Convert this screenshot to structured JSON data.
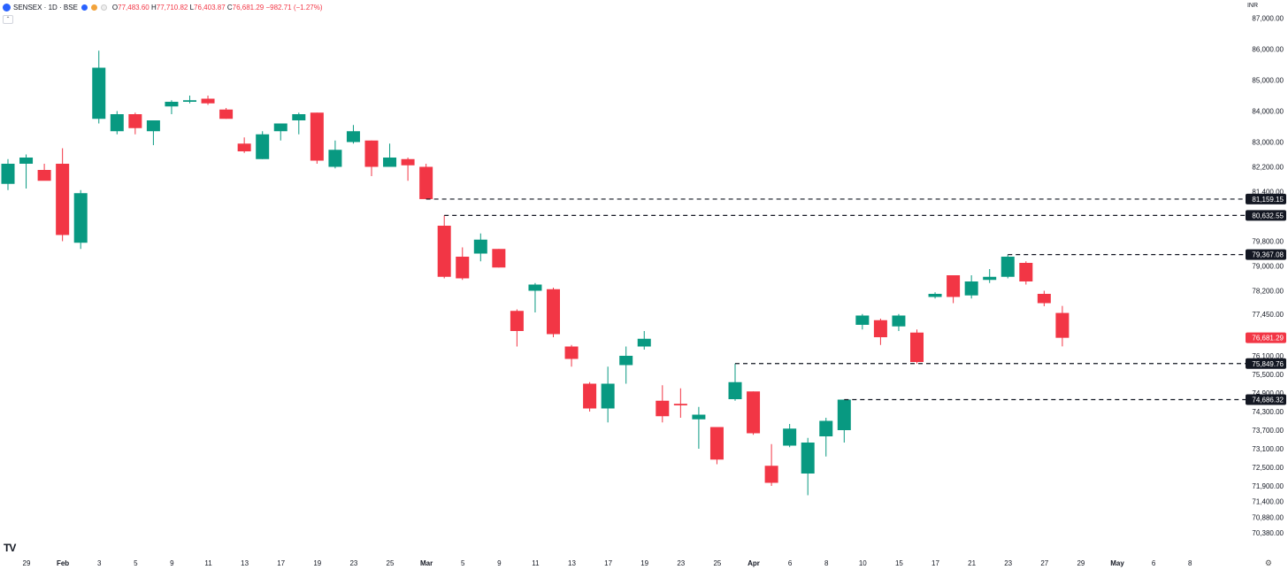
{
  "header": {
    "symbol": "SENSEX · 1D · BSE",
    "ohlc": {
      "o_label": "O",
      "o_value": "77,483.60",
      "h_label": "H",
      "h_value": "77,710.82",
      "l_label": "L",
      "l_value": "76,403.87",
      "c_label": "C",
      "c_value": "76,681.29",
      "change": "−982.71 (−1.27%)"
    }
  },
  "currency": "INR",
  "colors": {
    "up": "#089981",
    "down": "#f23645",
    "text": "#131722",
    "tag_dark": "#131722",
    "last_price": "#f23645"
  },
  "chart_data": {
    "type": "candlestick",
    "ylim": [
      70300,
      87300
    ],
    "y_ticks": [
      {
        "v": 87000,
        "label": "87,000.00"
      },
      {
        "v": 86000,
        "label": "86,000.00"
      },
      {
        "v": 85000,
        "label": "85,000.00"
      },
      {
        "v": 84000,
        "label": "84,000.00"
      },
      {
        "v": 83000,
        "label": "83,000.00"
      },
      {
        "v": 82200,
        "label": "82,200.00"
      },
      {
        "v": 81400,
        "label": "81,400.00"
      },
      {
        "v": 79800,
        "label": "79,800.00"
      },
      {
        "v": 79000,
        "label": "79,000.00"
      },
      {
        "v": 78200,
        "label": "78,200.00"
      },
      {
        "v": 77450,
        "label": "77,450.00"
      },
      {
        "v": 76100,
        "label": "76,100.00"
      },
      {
        "v": 75500,
        "label": "75,500.00"
      },
      {
        "v": 74900,
        "label": "74,900.00"
      },
      {
        "v": 74300,
        "label": "74,300.00"
      },
      {
        "v": 73700,
        "label": "73,700.00"
      },
      {
        "v": 73100,
        "label": "73,100.00"
      },
      {
        "v": 72500,
        "label": "72,500.00"
      },
      {
        "v": 71900,
        "label": "71,900.00"
      },
      {
        "v": 71400,
        "label": "71,400.00"
      },
      {
        "v": 70880,
        "label": "70,880.00"
      },
      {
        "v": 70380,
        "label": "70,380.00"
      }
    ],
    "x_ticks": [
      {
        "label": "29",
        "bold": false
      },
      {
        "label": "Feb",
        "bold": true
      },
      {
        "label": "3",
        "bold": false
      },
      {
        "label": "5",
        "bold": false
      },
      {
        "label": "9",
        "bold": false
      },
      {
        "label": "11",
        "bold": false
      },
      {
        "label": "13",
        "bold": false
      },
      {
        "label": "17",
        "bold": false
      },
      {
        "label": "19",
        "bold": false
      },
      {
        "label": "23",
        "bold": false
      },
      {
        "label": "25",
        "bold": false
      },
      {
        "label": "Mar",
        "bold": true
      },
      {
        "label": "5",
        "bold": false
      },
      {
        "label": "9",
        "bold": false
      },
      {
        "label": "11",
        "bold": false
      },
      {
        "label": "13",
        "bold": false
      },
      {
        "label": "17",
        "bold": false
      },
      {
        "label": "19",
        "bold": false
      },
      {
        "label": "23",
        "bold": false
      },
      {
        "label": "25",
        "bold": false
      },
      {
        "label": "Apr",
        "bold": true
      },
      {
        "label": "6",
        "bold": false
      },
      {
        "label": "8",
        "bold": false
      },
      {
        "label": "10",
        "bold": false
      },
      {
        "label": "15",
        "bold": false
      },
      {
        "label": "17",
        "bold": false
      },
      {
        "label": "21",
        "bold": false
      },
      {
        "label": "23",
        "bold": false
      },
      {
        "label": "27",
        "bold": false
      },
      {
        "label": "29",
        "bold": false
      },
      {
        "label": "May",
        "bold": true
      },
      {
        "label": "6",
        "bold": false
      },
      {
        "label": "8",
        "bold": false
      }
    ],
    "candles": [
      {
        "o": 81650,
        "h": 82450,
        "l": 81450,
        "c": 82300
      },
      {
        "o": 82300,
        "h": 82600,
        "l": 81500,
        "c": 82500
      },
      {
        "o": 82100,
        "h": 82300,
        "l": 81800,
        "c": 81750
      },
      {
        "o": 82300,
        "h": 82800,
        "l": 79800,
        "c": 80000
      },
      {
        "o": 79750,
        "h": 81450,
        "l": 79550,
        "c": 81350
      },
      {
        "o": 83750,
        "h": 85950,
        "l": 83600,
        "c": 85400
      },
      {
        "o": 83350,
        "h": 84000,
        "l": 83250,
        "c": 83900
      },
      {
        "o": 83900,
        "h": 83950,
        "l": 83250,
        "c": 83450
      },
      {
        "o": 83350,
        "h": 83700,
        "l": 82900,
        "c": 83700
      },
      {
        "o": 84150,
        "h": 84350,
        "l": 83900,
        "c": 84300
      },
      {
        "o": 84300,
        "h": 84500,
        "l": 84250,
        "c": 84350
      },
      {
        "o": 84400,
        "h": 84500,
        "l": 84200,
        "c": 84250
      },
      {
        "o": 84050,
        "h": 84100,
        "l": 83750,
        "c": 83750
      },
      {
        "o": 82950,
        "h": 83150,
        "l": 82650,
        "c": 82700
      },
      {
        "o": 82450,
        "h": 83350,
        "l": 82450,
        "c": 83250
      },
      {
        "o": 83350,
        "h": 83600,
        "l": 83050,
        "c": 83600
      },
      {
        "o": 83700,
        "h": 83950,
        "l": 83250,
        "c": 83900
      },
      {
        "o": 83950,
        "h": 83950,
        "l": 82300,
        "c": 82400
      },
      {
        "o": 82200,
        "h": 83050,
        "l": 82150,
        "c": 82750
      },
      {
        "o": 83000,
        "h": 83550,
        "l": 82950,
        "c": 83350
      },
      {
        "o": 83050,
        "h": 83050,
        "l": 81900,
        "c": 82200
      },
      {
        "o": 82200,
        "h": 82950,
        "l": 82200,
        "c": 82500
      },
      {
        "o": 82450,
        "h": 82500,
        "l": 81750,
        "c": 82250
      },
      {
        "o": 82200,
        "h": 82300,
        "l": 81159,
        "c": 81159
      },
      {
        "o": 80300,
        "h": 80633,
        "l": 78600,
        "c": 78650
      },
      {
        "o": 79300,
        "h": 79600,
        "l": 78550,
        "c": 78600
      },
      {
        "o": 79400,
        "h": 80050,
        "l": 79150,
        "c": 79850
      },
      {
        "o": 79550,
        "h": 79550,
        "l": 78950,
        "c": 78950
      },
      {
        "o": 77550,
        "h": 77600,
        "l": 76400,
        "c": 76900
      },
      {
        "o": 78200,
        "h": 78450,
        "l": 77500,
        "c": 78400
      },
      {
        "o": 78250,
        "h": 78300,
        "l": 76700,
        "c": 76800
      },
      {
        "o": 76400,
        "h": 76450,
        "l": 75750,
        "c": 76000
      },
      {
        "o": 75200,
        "h": 75250,
        "l": 74300,
        "c": 74400
      },
      {
        "o": 74400,
        "h": 75750,
        "l": 73950,
        "c": 75200
      },
      {
        "o": 75800,
        "h": 76400,
        "l": 75200,
        "c": 76100
      },
      {
        "o": 76400,
        "h": 76900,
        "l": 76300,
        "c": 76650
      },
      {
        "o": 74650,
        "h": 75150,
        "l": 73950,
        "c": 74150
      },
      {
        "o": 74550,
        "h": 75050,
        "l": 74100,
        "c": 74500
      },
      {
        "o": 74050,
        "h": 74450,
        "l": 73100,
        "c": 74200
      },
      {
        "o": 73800,
        "h": 73800,
        "l": 72600,
        "c": 72750
      },
      {
        "o": 74700,
        "h": 75850,
        "l": 74650,
        "c": 75250
      },
      {
        "o": 74950,
        "h": 74950,
        "l": 73550,
        "c": 73600
      },
      {
        "o": 72550,
        "h": 73250,
        "l": 71900,
        "c": 72000
      },
      {
        "o": 73200,
        "h": 73900,
        "l": 73150,
        "c": 73750
      },
      {
        "o": 72300,
        "h": 73450,
        "l": 71600,
        "c": 73300
      },
      {
        "o": 73500,
        "h": 74100,
        "l": 72850,
        "c": 74000
      },
      {
        "o": 73700,
        "h": 74686,
        "l": 73300,
        "c": 74686
      },
      {
        "o": 77100,
        "h": 77450,
        "l": 76950,
        "c": 77400
      },
      {
        "o": 77250,
        "h": 77300,
        "l": 76450,
        "c": 76700
      },
      {
        "o": 77050,
        "h": 77450,
        "l": 76900,
        "c": 77400
      },
      {
        "o": 76850,
        "h": 76950,
        "l": 75850,
        "c": 75900
      },
      {
        "o": 78000,
        "h": 78150,
        "l": 77950,
        "c": 78100
      },
      {
        "o": 78700,
        "h": 78700,
        "l": 77800,
        "c": 78000
      },
      {
        "o": 78050,
        "h": 78700,
        "l": 77950,
        "c": 78500
      },
      {
        "o": 78550,
        "h": 78900,
        "l": 78450,
        "c": 78650
      },
      {
        "o": 78650,
        "h": 79367,
        "l": 78600,
        "c": 79300
      },
      {
        "o": 79100,
        "h": 79150,
        "l": 78400,
        "c": 78500
      },
      {
        "o": 78100,
        "h": 78200,
        "l": 77700,
        "c": 77800
      },
      {
        "o": 77483.6,
        "h": 77710.82,
        "l": 76403.87,
        "c": 76681.29
      }
    ],
    "levels": [
      {
        "value": 81159.15,
        "label": "81,159.15"
      },
      {
        "value": 80632.55,
        "label": "80,632.55"
      },
      {
        "value": 79367.08,
        "label": "79,367.08"
      },
      {
        "value": 75849.76,
        "label": "75,849.76"
      },
      {
        "value": 74686.32,
        "label": "74,686.32"
      }
    ],
    "last_price": {
      "value": 76681.29,
      "label": "76,681.29"
    }
  }
}
